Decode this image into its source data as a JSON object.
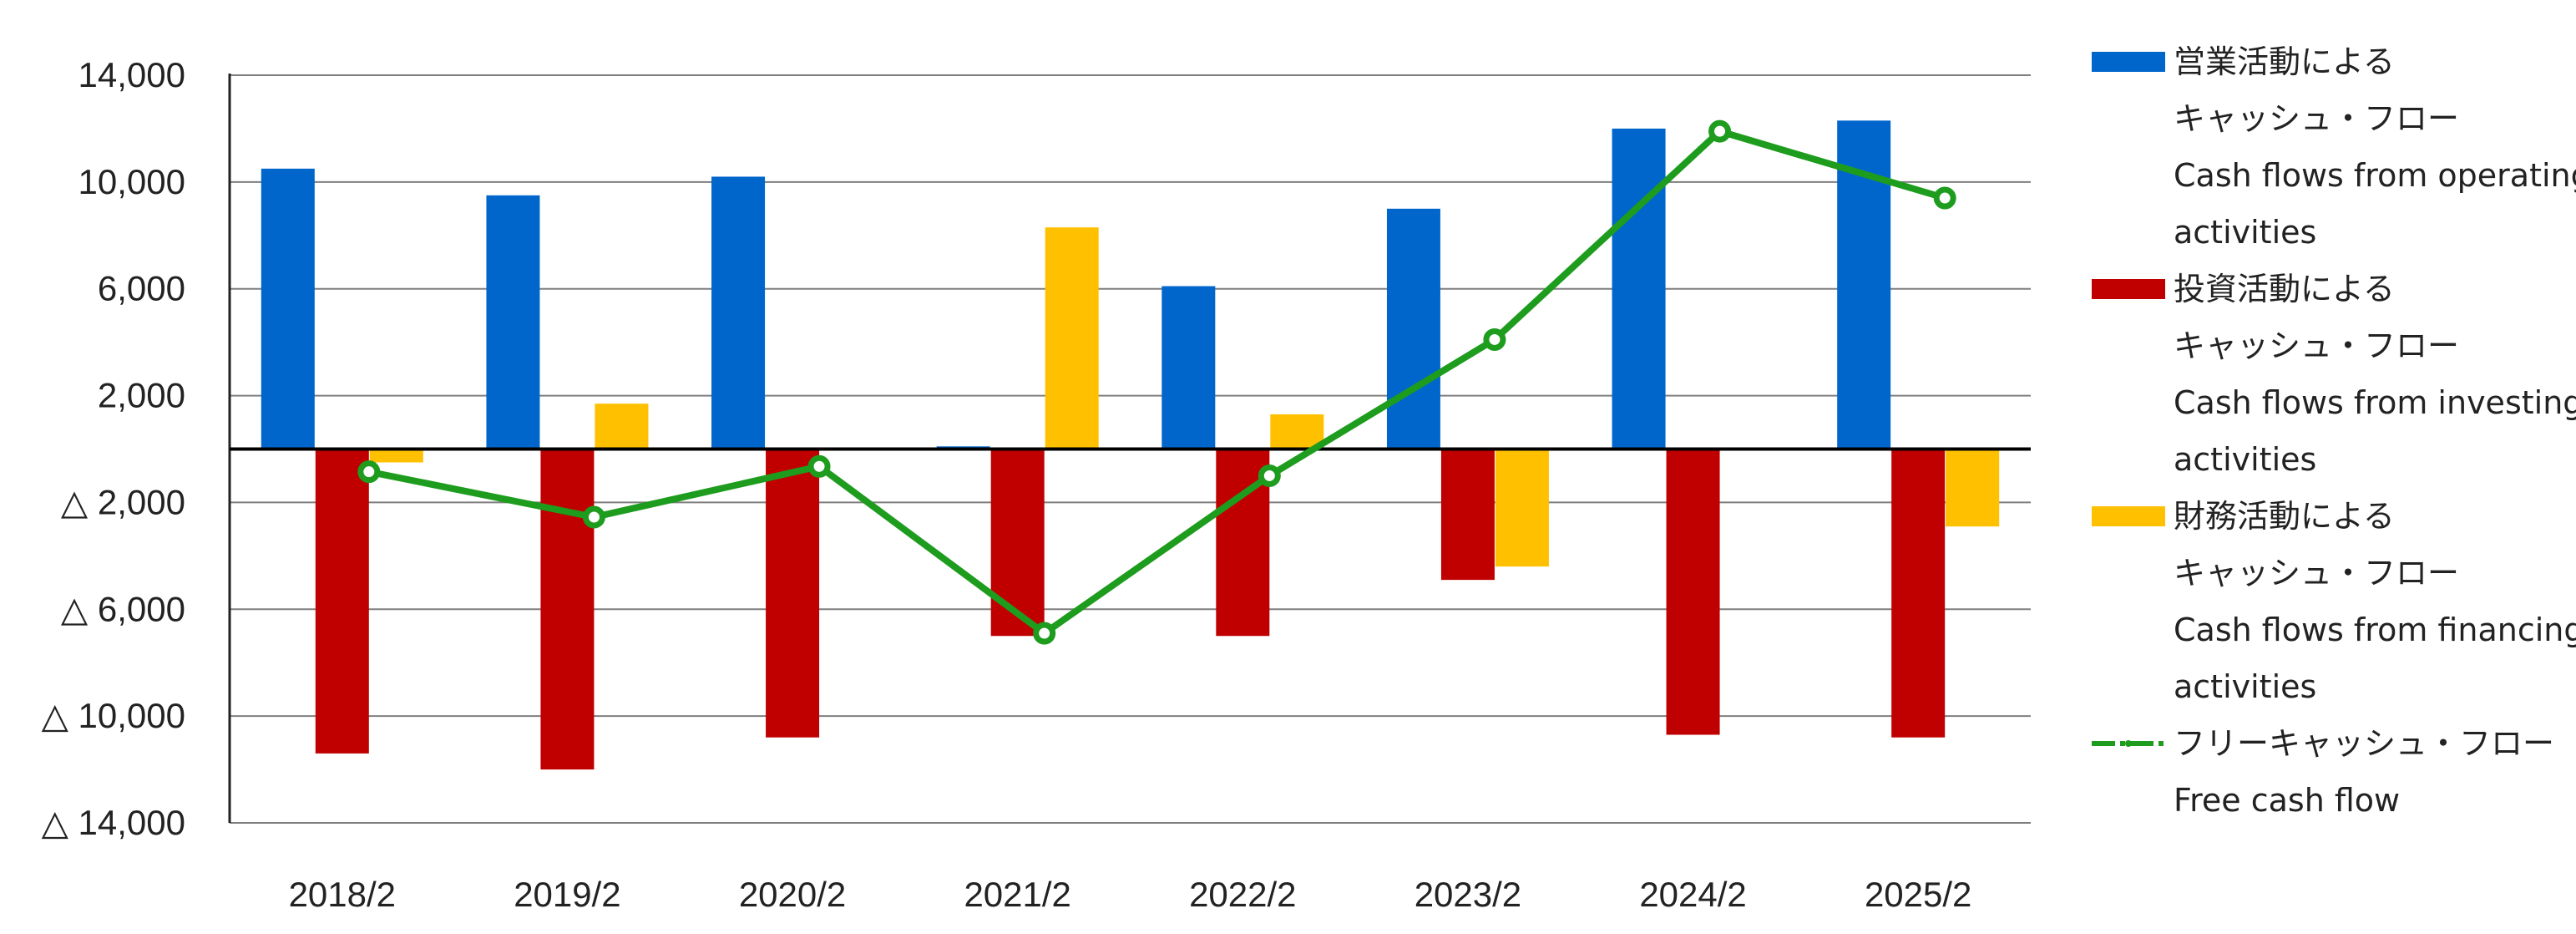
{
  "chart_data": {
    "type": "bar",
    "categories": [
      "2018/2",
      "2019/2",
      "2020/2",
      "2021/2",
      "2022/2",
      "2023/2",
      "2024/2",
      "2025/2"
    ],
    "yticks": [
      {
        "value": 14000,
        "label": "14,000"
      },
      {
        "value": 10000,
        "label": "10,000"
      },
      {
        "value": 6000,
        "label": "6,000"
      },
      {
        "value": 2000,
        "label": "2,000"
      },
      {
        "value": -2000,
        "label": "△ 2,000"
      },
      {
        "value": -6000,
        "label": "△ 6,000"
      },
      {
        "value": -10000,
        "label": "△ 10,000"
      },
      {
        "value": -14000,
        "label": "△ 14,000"
      }
    ],
    "ylim": [
      -14000,
      14000
    ],
    "grid": true,
    "legend_position": "right",
    "series": [
      {
        "name": "営業活動による キャッシュ・フロー Cash flows from operating activities",
        "legend_lines": [
          "営業活動による",
          "キャッシュ・フロー",
          "Cash flows from operating",
          "activities"
        ],
        "type": "bar",
        "color": "#0066cc",
        "values": [
          10500,
          9500,
          10200,
          100,
          6100,
          9000,
          12000,
          12300
        ]
      },
      {
        "name": "投資活動による キャッシュ・フロー Cash flows from investing activities",
        "legend_lines": [
          "投資活動による",
          "キャッシュ・フロー",
          "Cash flows from investing",
          "activities"
        ],
        "type": "bar",
        "color": "#c00000",
        "values": [
          -11400,
          -12000,
          -10800,
          -7000,
          -7000,
          -4900,
          -10700,
          -10800
        ]
      },
      {
        "name": "財務活動による キャッシュ・フロー Cash flows from financing activities",
        "legend_lines": [
          "財務活動による",
          "キャッシュ・フロー",
          "Cash flows from financing",
          "activities"
        ],
        "type": "bar",
        "color": "#ffc000",
        "values": [
          -500,
          1700,
          0,
          8300,
          1300,
          -4400,
          0,
          -2900
        ]
      },
      {
        "name": "フリーキャッシュ・フロー Free cash flow",
        "legend_lines": [
          "フリーキャッシュ・フロー",
          "Free cash flow"
        ],
        "type": "line",
        "color": "#1e9c1e",
        "values": [
          -850,
          -2550,
          -650,
          -6900,
          -1000,
          4100,
          11900,
          9400
        ]
      }
    ]
  }
}
